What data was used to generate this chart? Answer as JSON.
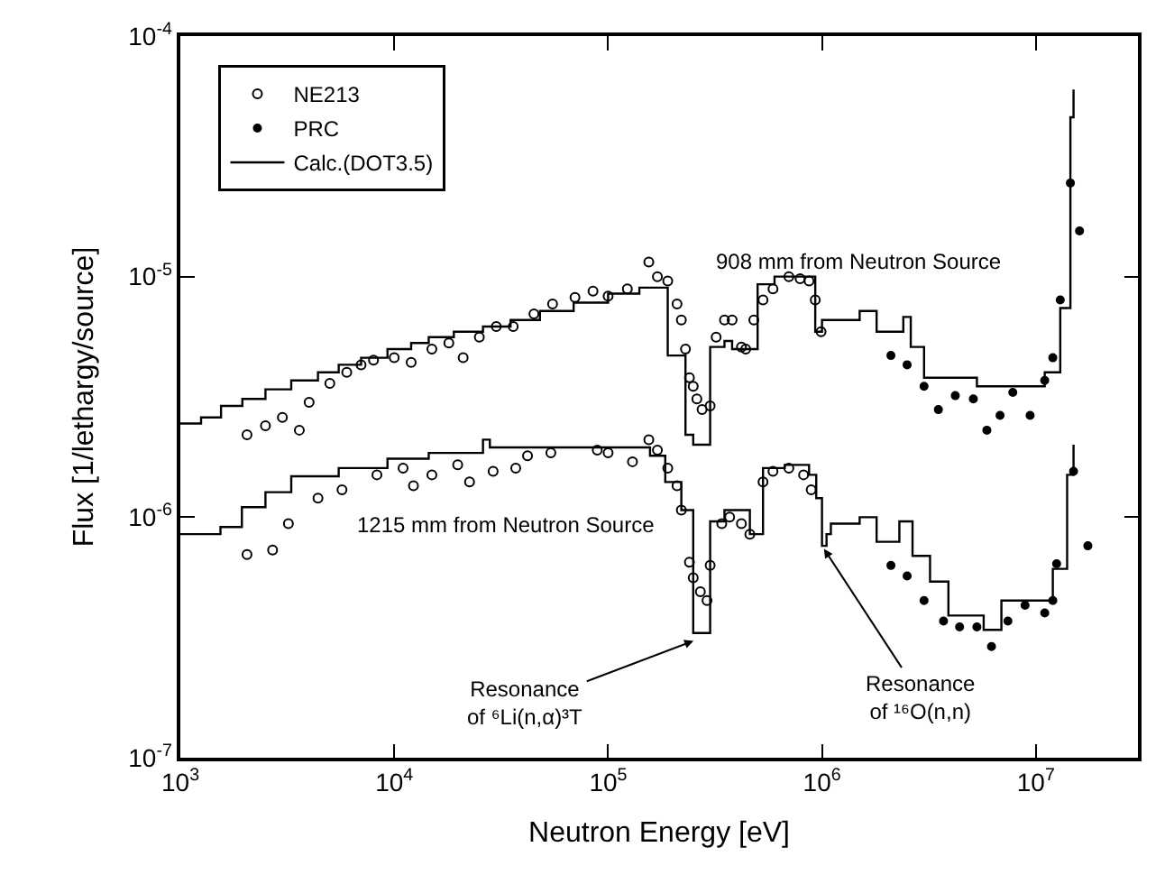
{
  "chart_data": {
    "type": "scatter",
    "xlabel": "Neutron Energy [eV]",
    "ylabel": "Flux [1/lethargy/source]",
    "log": "xy",
    "legend": "top left",
    "xlim": [
      1000,
      30000000
    ],
    "ylim": [
      1e-07,
      0.0001
    ],
    "xticks": [
      {
        "value": 1000,
        "label": "10$^{3}$"
      },
      {
        "value": 10000,
        "label": "10$^{4}$"
      },
      {
        "value": 100000,
        "label": "10$^{5}$"
      },
      {
        "value": 1000000,
        "label": "10$^{6}$"
      },
      {
        "value": 10000000,
        "label": "10$^{7}$"
      }
    ],
    "yticks": [
      {
        "value": 1e-07,
        "label": "10$^{-7}$"
      },
      {
        "value": 1e-06,
        "label": "10$^{-6}$"
      },
      {
        "value": 1e-05,
        "label": "10$^{-5}$"
      },
      {
        "value": 0.0001,
        "label": "10$^{-4}$"
      }
    ],
    "series": [
      {
        "name": "NE213",
        "marker": "circle",
        "color": "#000000",
        "x": [
          2050,
          2500,
          3000,
          3600,
          4000,
          5000,
          6000,
          7000,
          8000,
          10000,
          12000,
          15000,
          18000,
          21000,
          25000,
          30000,
          36000,
          45000,
          55000,
          70000,
          85000,
          100000,
          123000,
          155000,
          170000,
          190000,
          210000,
          220000,
          230000,
          240000,
          250000,
          260000,
          275000,
          300000,
          320000,
          350000,
          380000,
          420000,
          440000,
          480000,
          530000,
          590000,
          700000,
          790000,
          870000,
          930000,
          990000
        ],
        "values": [
          2.2e-06,
          2.4e-06,
          2.6e-06,
          2.3e-06,
          3e-06,
          3.6e-06,
          4e-06,
          4.3e-06,
          4.5e-06,
          4.6e-06,
          4.4e-06,
          5e-06,
          5.3e-06,
          4.6e-06,
          5.6e-06,
          6.2e-06,
          6.2e-06,
          7e-06,
          7.7e-06,
          8.2e-06,
          8.7e-06,
          8.3e-06,
          8.9e-06,
          1.15e-05,
          1e-05,
          9.6e-06,
          7.7e-06,
          6.6e-06,
          5e-06,
          3.8e-06,
          3.5e-06,
          3.1e-06,
          2.8e-06,
          2.9e-06,
          5.6e-06,
          6.6e-06,
          6.6e-06,
          5.1e-06,
          5e-06,
          6.6e-06,
          8e-06,
          8.9e-06,
          1e-05,
          9.8e-06,
          9.6e-06,
          8e-06,
          5.9e-06
        ]
      },
      {
        "name": "PRC",
        "marker": "circle",
        "color": "#000000",
        "x": [
          2100000,
          2500000,
          3000000,
          3500000,
          4200000,
          5100000,
          5900000,
          6800000,
          7800000,
          9400000,
          11000000,
          12000000,
          13000000,
          14500000,
          16000000
        ],
        "values": [
          4.7e-06,
          4.3e-06,
          3.5e-06,
          2.8e-06,
          3.2e-06,
          3.1e-06,
          2.3e-06,
          2.65e-06,
          3.3e-06,
          2.65e-06,
          3.7e-06,
          4.6e-06,
          8e-06,
          2.45e-05,
          1.55e-05
        ]
      },
      {
        "name": "Calc.(DOT3.5)",
        "type": "step",
        "marker": "none",
        "color": "#000000",
        "x": [
          1000,
          1250,
          1550,
          1950,
          2500,
          3300,
          4400,
          5500,
          7000,
          9300,
          12000,
          14500,
          19000,
          26000,
          35000,
          48000,
          69000,
          100000,
          140000,
          190000,
          230000,
          250000,
          300000,
          350000,
          380000,
          500000,
          600000,
          930000,
          1000000,
          1500000,
          1800000,
          2400000,
          2600000,
          3000000,
          5300000,
          9400000,
          11000000,
          13000000,
          14500000,
          15000000
        ],
        "values": [
          2.45e-06,
          2.6e-06,
          2.9e-06,
          3.1e-06,
          3.4e-06,
          3.7e-06,
          4e-06,
          4.3e-06,
          4.6e-06,
          5e-06,
          5.3e-06,
          5.6e-06,
          5.9e-06,
          6.2e-06,
          6.6e-06,
          7.2e-06,
          7.8e-06,
          8.5e-06,
          9e-06,
          4.7e-06,
          2.2e-06,
          2e-06,
          5.1e-06,
          5.4e-06,
          5e-06,
          9.3e-06,
          1e-05,
          5.9e-06,
          6.6e-06,
          7.2e-06,
          5.9e-06,
          6.8e-06,
          5.1e-06,
          3.8e-06,
          3.5e-06,
          3.5e-06,
          4e-06,
          7.4e-06,
          4.6e-05,
          6e-05
        ]
      },
      {
        "marker": "circle",
        "color": "#000000",
        "x": [
          2050,
          2700,
          3200,
          4400,
          5700,
          8300,
          11000,
          12300,
          15000,
          19800,
          22500,
          29000,
          37000,
          42000,
          54000,
          89000,
          100000,
          130000,
          155000,
          170000,
          190000,
          210000,
          220000,
          240000,
          250000,
          270000,
          290000,
          300000,
          340000,
          370000,
          420000,
          460000,
          530000,
          590000,
          700000,
          820000,
          890000
        ],
        "values": [
          7e-07,
          7.3e-07,
          9.4e-07,
          1.2e-06,
          1.3e-06,
          1.5e-06,
          1.6e-06,
          1.35e-06,
          1.5e-06,
          1.65e-06,
          1.4e-06,
          1.55e-06,
          1.6e-06,
          1.8e-06,
          1.85e-06,
          1.9e-06,
          1.85e-06,
          1.7e-06,
          2.1e-06,
          1.9e-06,
          1.6e-06,
          1.35e-06,
          1.07e-06,
          6.5e-07,
          5.6e-07,
          4.9e-07,
          4.5e-07,
          6.3e-07,
          9.4e-07,
          1e-06,
          9.4e-07,
          8.5e-07,
          1.4e-06,
          1.55e-06,
          1.6e-06,
          1.5e-06,
          1.3e-06
        ]
      },
      {
        "marker": "circle",
        "color": "#000000",
        "x": [
          2100000,
          2500000,
          3000000,
          3700000,
          4400000,
          5300000,
          6200000,
          7400000,
          8900000,
          11000000,
          12000000,
          12500000,
          15000000,
          17500000
        ],
        "values": [
          6.3e-07,
          5.7e-07,
          4.5e-07,
          3.7e-07,
          3.5e-07,
          3.5e-07,
          2.9e-07,
          3.7e-07,
          4.3e-07,
          4e-07,
          4.5e-07,
          6.4e-07,
          1.55e-06,
          7.6e-07
        ]
      },
      {
        "type": "step",
        "marker": "none",
        "color": "#000000",
        "x": [
          1000,
          1540,
          1940,
          2500,
          3300,
          5500,
          9300,
          14500,
          26000,
          28000,
          100000,
          157000,
          185000,
          220000,
          250000,
          300000,
          350000,
          460000,
          530000,
          670000,
          870000,
          940000,
          1000000,
          1050000,
          1100000,
          1500000,
          1800000,
          2300000,
          2650000,
          3200000,
          3900000,
          5700000,
          6900000,
          10000000,
          12000000,
          14000000,
          15000000
        ],
        "values": [
          8.5e-07,
          9.1e-07,
          1.1e-06,
          1.27e-06,
          1.48e-06,
          1.6e-06,
          1.75e-06,
          1.85e-06,
          2.1e-06,
          1.95e-06,
          1.95e-06,
          1.8e-06,
          1.4e-06,
          1.07e-06,
          3.3e-07,
          9.6e-07,
          1.07e-06,
          8.5e-07,
          1.6e-06,
          1.65e-06,
          1.5e-06,
          1.2e-06,
          7.6e-07,
          8.5e-07,
          9.4e-07,
          1e-06,
          7.9e-07,
          9.6e-07,
          6.9e-07,
          5.4e-07,
          3.9e-07,
          3.4e-07,
          4.5e-07,
          4.5e-07,
          6.1e-07,
          1.5e-06,
          2e-06
        ]
      }
    ],
    "annotations": [
      "908 mm from Neutron Source",
      "1215 mm from Neutron Source",
      {
        "text": "Resonance\nof ⁶Li(n,α)³T",
        "x": 260000,
        "y": 3.1e-07
      },
      {
        "text": "Resonance\nof ¹⁶O(n,n)",
        "x": 1000000,
        "y": 7.6e-07
      }
    ]
  }
}
